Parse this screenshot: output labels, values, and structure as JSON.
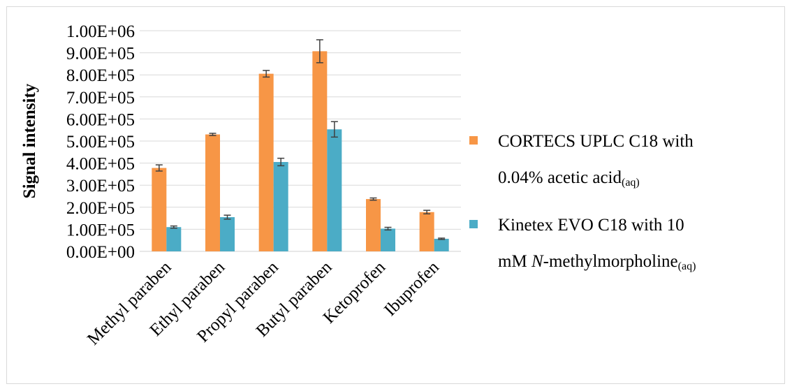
{
  "chart_data": {
    "type": "bar",
    "title": "",
    "xlabel": "",
    "ylabel": "Signal intensity",
    "ylim": [
      0,
      1000000
    ],
    "y_ticks": [
      "0.00E+00",
      "1.00E+05",
      "2.00E+05",
      "3.00E+05",
      "4.00E+05",
      "5.00E+05",
      "6.00E+05",
      "7.00E+05",
      "8.00E+05",
      "9.00E+05",
      "1.00E+06"
    ],
    "categories": [
      "Methyl paraben",
      "Ethyl paraben",
      "Propyl paraben",
      "Butyl paraben",
      "Ketoprofen",
      "Ibuprofen"
    ],
    "series": [
      {
        "name_parts": [
          {
            "text": "CORTECS UPLC C18 with",
            "line": 1
          },
          {
            "text": "0.04% acetic acid",
            "line": 2
          },
          {
            "text": "(aq)",
            "line": 2,
            "sub": true
          }
        ],
        "color": "#f79646",
        "values": [
          378000,
          530000,
          805000,
          907000,
          237000,
          178000
        ],
        "errors": [
          14000,
          5000,
          15000,
          52000,
          5000,
          8000
        ]
      },
      {
        "name_parts": [
          {
            "text": "Kinetex EVO C18 with 10",
            "line": 1
          },
          {
            "text": "mM ",
            "line": 2
          },
          {
            "text": "N",
            "line": 2,
            "italic": true
          },
          {
            "text": "-methylmorpholine",
            "line": 2
          },
          {
            "text": "(aq)",
            "line": 2,
            "sub": true
          }
        ],
        "color": "#4bacc6",
        "values": [
          110000,
          155000,
          405000,
          553000,
          103000,
          57000
        ],
        "errors": [
          5000,
          9000,
          17000,
          35000,
          6000,
          3000
        ]
      }
    ],
    "grid": true,
    "legend_position": "right",
    "error_bars": true
  }
}
